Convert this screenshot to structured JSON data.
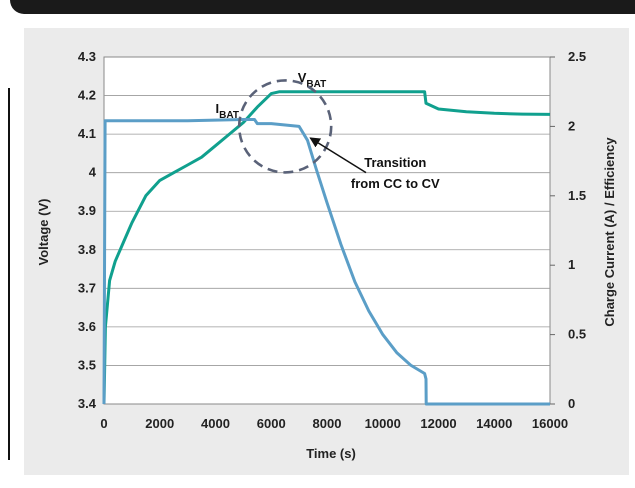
{
  "colors": {
    "vbat": "#10a08e",
    "ibat": "#5b9ec7",
    "circle": "#5a6278",
    "panel": "#ebebeb"
  },
  "chart_data": {
    "type": "line",
    "xlabel": "Time (s)",
    "ylabel_left": "Voltage (V)",
    "ylabel_right": "Charge Current (A) / Efficiency",
    "xlim": [
      0,
      16000
    ],
    "ylim_left": [
      3.4,
      4.3
    ],
    "ylim_right": [
      0,
      2.5
    ],
    "x_ticks": [
      "0",
      "2000",
      "4000",
      "6000",
      "8000",
      "10000",
      "12000",
      "14000",
      "16000"
    ],
    "y_ticks_left": [
      "3.4",
      "3.5",
      "3.6",
      "3.7",
      "3.8",
      "3.9",
      "4",
      "4.1",
      "4.2",
      "4.3"
    ],
    "y_ticks_right": [
      "0",
      "0.5",
      "1",
      "1.5",
      "2",
      "2.5"
    ],
    "grid": true,
    "series": [
      {
        "name": "VBAT",
        "label_main": "V",
        "label_sub": "BAT",
        "axis": "left",
        "x": [
          0,
          50,
          200,
          400,
          700,
          1000,
          1500,
          2000,
          2500,
          3000,
          3500,
          4000,
          4500,
          5000,
          5500,
          6000,
          6300,
          8000,
          10000,
          11500,
          11550,
          12000,
          13000,
          14000,
          15000,
          16000
        ],
        "y": [
          3.4,
          3.6,
          3.72,
          3.77,
          3.82,
          3.87,
          3.94,
          3.98,
          4.0,
          4.02,
          4.04,
          4.07,
          4.1,
          4.13,
          4.17,
          4.205,
          4.21,
          4.21,
          4.21,
          4.21,
          4.18,
          4.165,
          4.158,
          4.154,
          4.152,
          4.151
        ]
      },
      {
        "name": "IBAT",
        "label_main": "I",
        "label_sub": "BAT",
        "axis": "right",
        "x": [
          0,
          40,
          100,
          300,
          1000,
          3000,
          5000,
          5400,
          5500,
          6000,
          7000,
          7300,
          7600,
          8000,
          8500,
          9000,
          9500,
          10000,
          10500,
          11000,
          11500,
          11550,
          11560,
          16000
        ],
        "y": [
          0,
          2.04,
          2.04,
          2.04,
          2.04,
          2.04,
          2.05,
          2.05,
          2.02,
          2.02,
          2.0,
          1.9,
          1.7,
          1.45,
          1.15,
          0.88,
          0.67,
          0.5,
          0.37,
          0.28,
          0.22,
          0.18,
          0,
          0
        ]
      }
    ],
    "annotation": {
      "line1": "Transition",
      "line2": "from CC to CV",
      "x": 7300,
      "y_left": 4.08
    }
  }
}
